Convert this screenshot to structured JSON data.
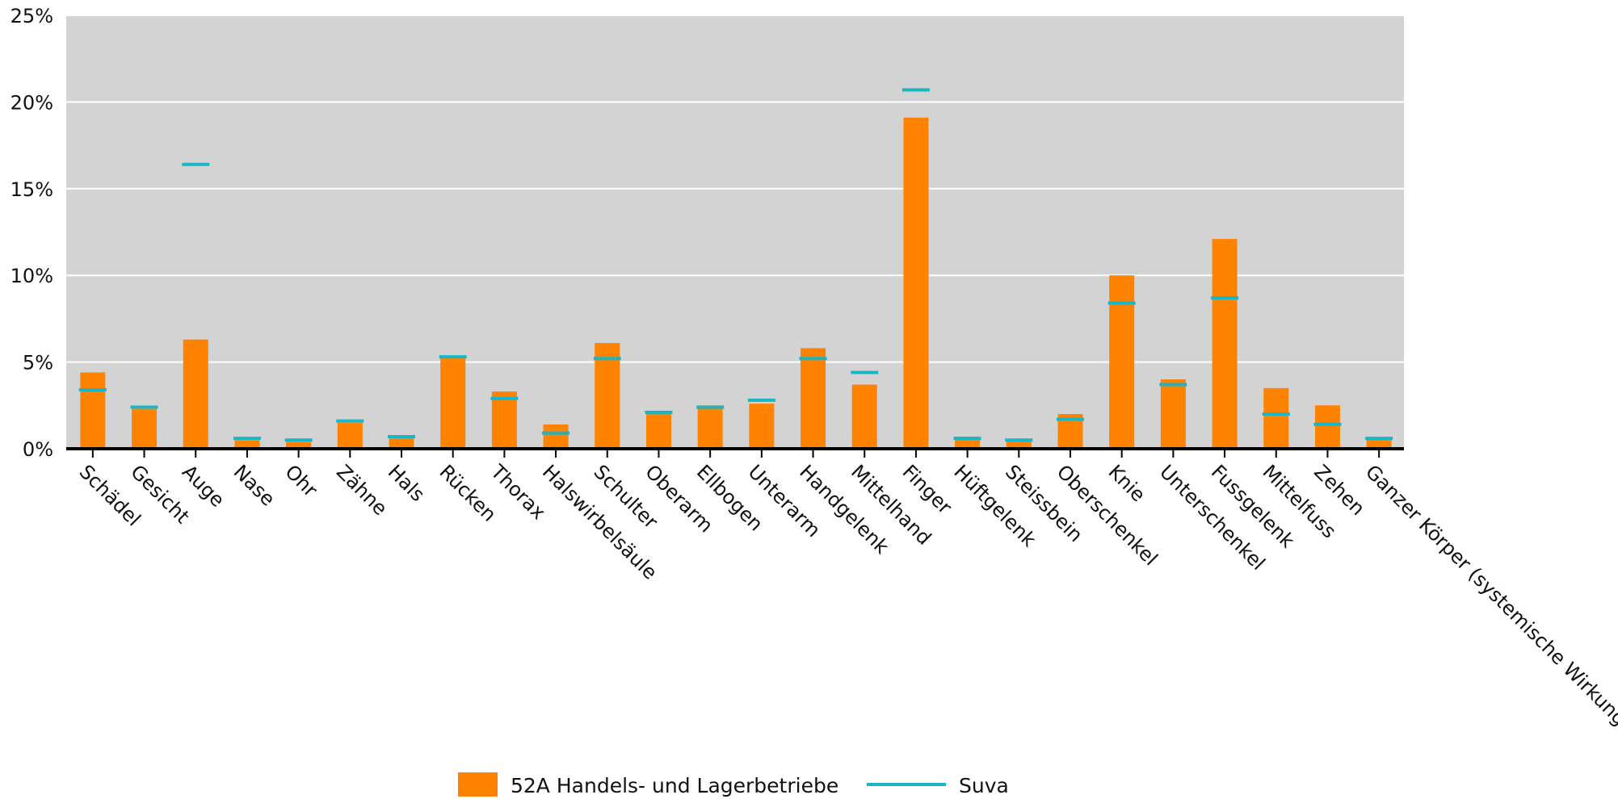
{
  "chart_data": {
    "type": "bar",
    "title": "",
    "xlabel": "",
    "ylabel": "",
    "ylim": [
      0,
      25
    ],
    "yticks": [
      0,
      5,
      10,
      15,
      20,
      25
    ],
    "ytick_labels": [
      "0%",
      "5%",
      "10%",
      "15%",
      "20%",
      "25%"
    ],
    "grid": true,
    "legend_position": "bottom",
    "categories": [
      "Schädel",
      "Gesicht",
      "Auge",
      "Nase",
      "Ohr",
      "Zähne",
      "Hals",
      "Rücken",
      "Thorax",
      "Halswirbelsäule",
      "Schulter",
      "Oberarm",
      "Ellbogen",
      "Unterarm",
      "Handgelenk",
      "Mittelhand",
      "Finger",
      "Hüftgelenk",
      "Steissbein",
      "Oberschenkel",
      "Knie",
      "Unterschenkel",
      "Fussgelenk",
      "Mittelfuss",
      "Zehen",
      "Ganzer Körper (systemische Wirkung)"
    ],
    "series": [
      {
        "name": "52A Handels- und Lagerbetriebe",
        "kind": "bar",
        "color": "#ff8200",
        "values": [
          4.4,
          2.3,
          6.3,
          0.5,
          0.4,
          1.5,
          0.6,
          5.3,
          3.3,
          1.4,
          6.1,
          2.1,
          2.5,
          2.6,
          5.8,
          3.7,
          19.1,
          0.7,
          0.5,
          2.0,
          10.0,
          4.0,
          12.1,
          3.5,
          2.5,
          0.6
        ]
      },
      {
        "name": "Suva",
        "kind": "marker",
        "color": "#1ab6c8",
        "values": [
          3.4,
          2.4,
          16.4,
          0.6,
          0.5,
          1.6,
          0.7,
          5.3,
          2.9,
          0.9,
          5.2,
          2.1,
          2.4,
          2.8,
          5.2,
          4.4,
          20.7,
          0.6,
          0.5,
          1.7,
          8.4,
          3.7,
          8.7,
          2.0,
          1.4,
          0.6
        ]
      }
    ],
    "colors": {
      "plot_background": "#d3d3d3",
      "gridline": "#ffffff",
      "axis": "#000000"
    }
  }
}
